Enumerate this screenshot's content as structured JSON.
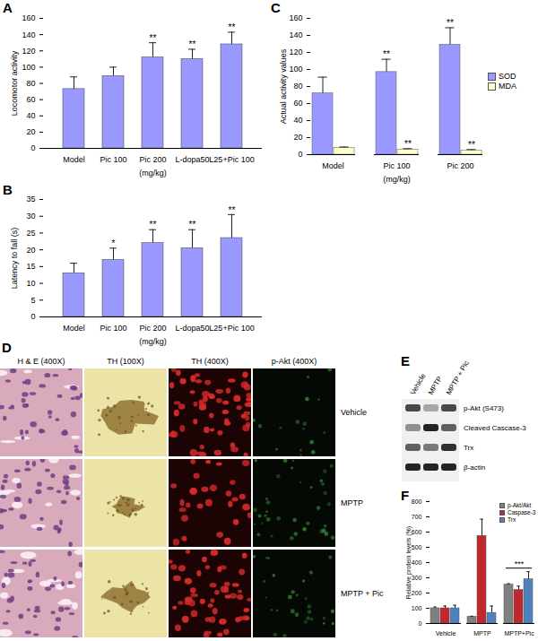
{
  "chart_data": [
    {
      "panel": "A",
      "type": "bar",
      "categories": [
        "Model",
        "Pic 100",
        "Pic 200",
        "L-dopa50",
        "L25+Pic 100"
      ],
      "values": [
        73,
        89,
        112,
        110,
        128
      ],
      "errors": [
        15,
        11,
        18,
        12,
        15
      ],
      "significance": [
        null,
        null,
        "**",
        "**",
        "**"
      ],
      "color": "#9999ff",
      "y_label": "Locomotor activity",
      "x_label": "(mg/kg)",
      "ylim": [
        0,
        160
      ],
      "yticks": [
        0,
        20,
        40,
        60,
        80,
        100,
        120,
        140,
        160
      ]
    },
    {
      "panel": "B",
      "type": "bar",
      "categories": [
        "Model",
        "Pic 100",
        "Pic 200",
        "L-dopa50",
        "L25+Pic 100"
      ],
      "values": [
        13,
        17,
        22,
        20.5,
        23.5
      ],
      "errors": [
        3,
        3.5,
        4,
        5.5,
        7
      ],
      "significance": [
        null,
        "*",
        "**",
        "**",
        "**"
      ],
      "color": "#9999ff",
      "y_label": "Latency to fall (s)",
      "x_label": "(mg/kg)",
      "ylim": [
        0,
        35
      ],
      "yticks": [
        0,
        5,
        10,
        15,
        20,
        25,
        30,
        35
      ]
    },
    {
      "panel": "C",
      "type": "bar",
      "categories": [
        "Model",
        "Pic 100",
        "Pic 200"
      ],
      "series": [
        {
          "name": "SOD",
          "color": "#9999ff",
          "values": [
            72,
            97,
            129
          ],
          "errors": [
            19,
            15,
            20
          ],
          "significance": [
            null,
            "**",
            "**"
          ]
        },
        {
          "name": "MDA",
          "color": "#ffffcc",
          "values": [
            8,
            6,
            5
          ],
          "errors": [
            1,
            1,
            1
          ],
          "significance": [
            null,
            "**",
            "**"
          ]
        }
      ],
      "y_label": "Actual activity values",
      "x_label": "(mg/kg)",
      "ylim": [
        0,
        160
      ],
      "yticks": [
        0,
        20,
        40,
        60,
        80,
        100,
        120,
        140,
        160
      ],
      "legend": "right"
    },
    {
      "panel": "F",
      "type": "bar",
      "categories": [
        "Vehicle",
        "MPTP",
        "MPTP+Pic"
      ],
      "series": [
        {
          "name": "p-Akt/Akt",
          "color": "#808080",
          "values": [
            100,
            45,
            255
          ],
          "errors": [
            8,
            3,
            6
          ]
        },
        {
          "name": "Caspase-3",
          "color": "#c0282d",
          "values": [
            100,
            575,
            220
          ],
          "errors": [
            15,
            110,
            25
          ]
        },
        {
          "name": "Trx",
          "color": "#4f81bd",
          "values": [
            100,
            70,
            290
          ],
          "errors": [
            20,
            45,
            50
          ]
        }
      ],
      "annotations": [
        {
          "category": "MPTP+Pic",
          "text": "***"
        }
      ],
      "y_label": "Relative protein levels (%)",
      "ylim": [
        0,
        800
      ],
      "yticks": [
        0,
        100,
        200,
        300,
        400,
        500,
        600,
        700,
        800
      ],
      "legend": "top-right"
    }
  ],
  "micrographs": {
    "panel": "D",
    "columns": [
      "H & E (400X)",
      "TH (100X)",
      "TH (400X)",
      "p-Akt (400X)"
    ],
    "rows": [
      "Vehicle",
      "MPTP",
      "MPTP + Pic"
    ]
  },
  "western_blot": {
    "panel": "E",
    "lanes": [
      "Vehicle",
      "MPTP",
      "MPTP + Pic"
    ],
    "bands": [
      {
        "label": "p-Akt (S473)",
        "intensity": [
          0.7,
          0.3,
          0.7
        ]
      },
      {
        "label": "Cleaved Cascase-3",
        "intensity": [
          0.4,
          0.85,
          0.6
        ]
      },
      {
        "label": "Trx",
        "intensity": [
          0.6,
          0.5,
          0.8
        ]
      },
      {
        "label": "β-actin",
        "intensity": [
          0.85,
          0.85,
          0.85
        ]
      }
    ]
  }
}
